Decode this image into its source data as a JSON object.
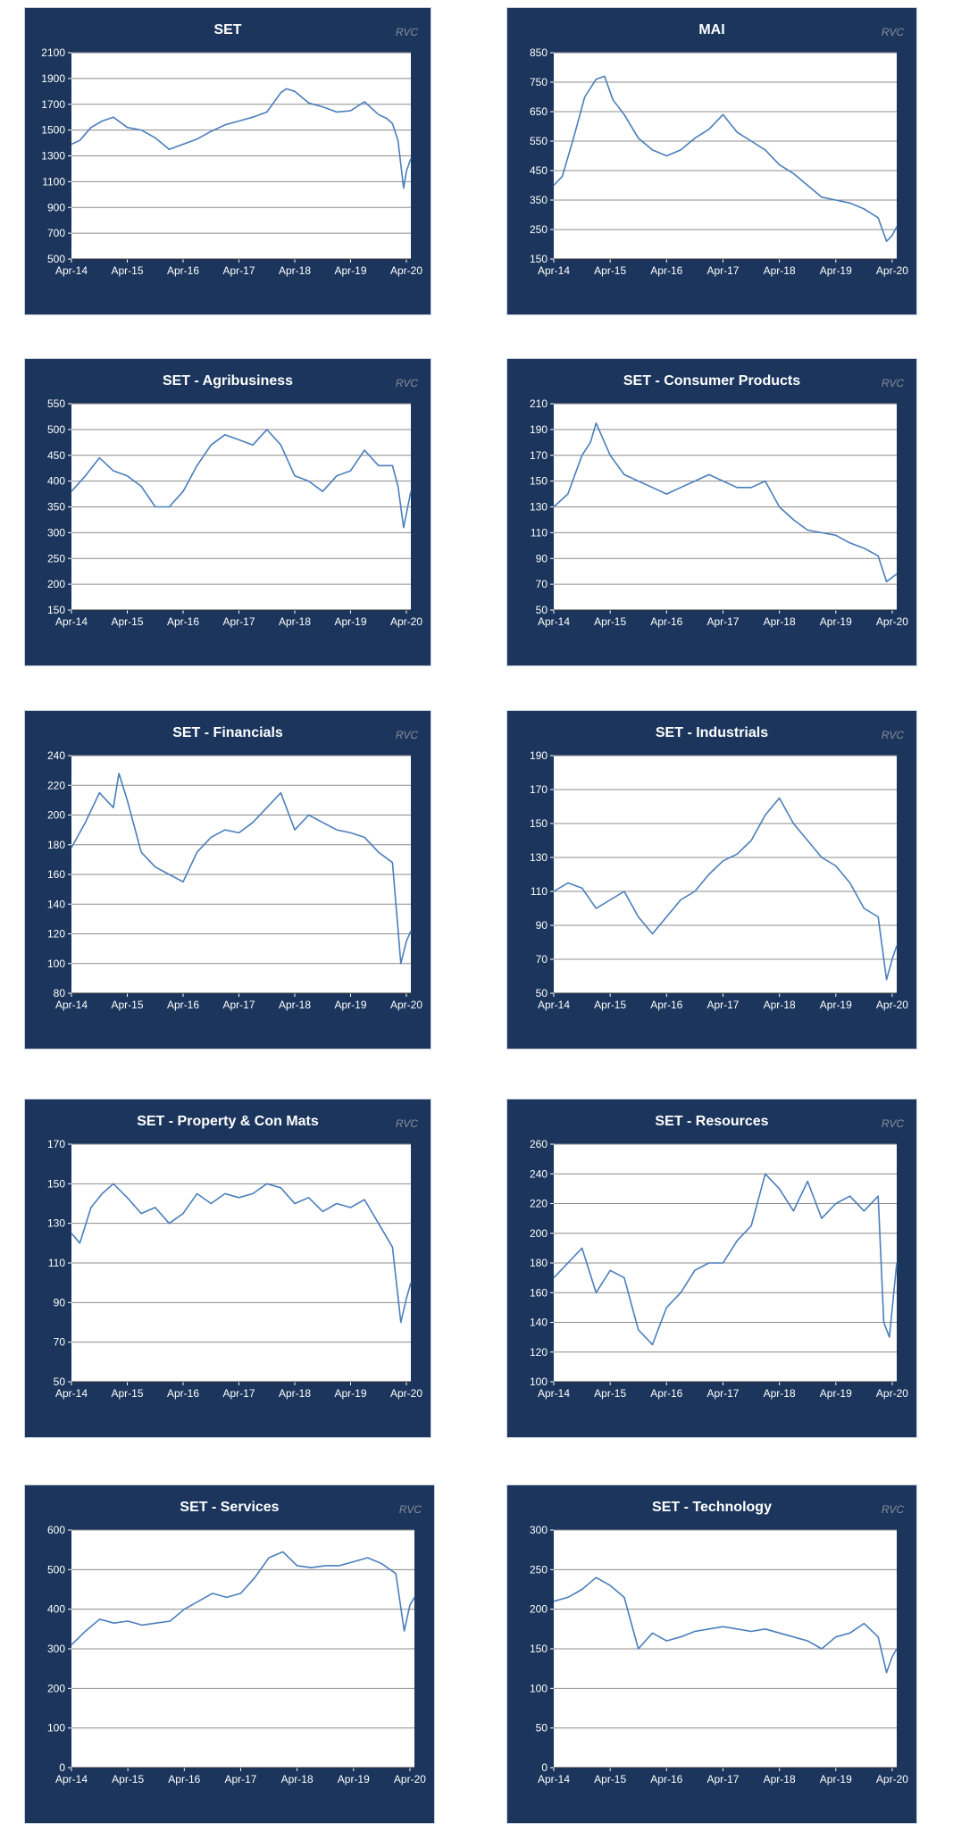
{
  "style": {
    "panel_bg": "#1b355c",
    "plot_bg": "#ffffff",
    "grid": "#8c8c8c",
    "line": "#4a7ebb",
    "tick_text": "#ffffff"
  },
  "chart_data": [
    {
      "type": "line",
      "title": "SET",
      "watermark": "RVC",
      "ylim": [
        500,
        2100
      ],
      "yticks": [
        500,
        700,
        900,
        1100,
        1300,
        1500,
        1700,
        1900,
        2100
      ],
      "xticks": [
        "Apr-14",
        "Apr-15",
        "Apr-16",
        "Apr-17",
        "Apr-18",
        "Apr-19",
        "Apr-20"
      ],
      "xlim": [
        2014.25,
        2020.33
      ],
      "series": [
        {
          "x": [
            2014.25,
            2014.4,
            2014.6,
            2014.8,
            2015.0,
            2015.25,
            2015.5,
            2015.75,
            2016.0,
            2016.25,
            2016.5,
            2016.75,
            2017.0,
            2017.25,
            2017.5,
            2017.75,
            2018.0,
            2018.1,
            2018.25,
            2018.5,
            2018.75,
            2019.0,
            2019.25,
            2019.5,
            2019.75,
            2019.9,
            2020.0,
            2020.1,
            2020.2,
            2020.25,
            2020.33
          ],
          "y": [
            1390,
            1420,
            1520,
            1570,
            1600,
            1520,
            1500,
            1440,
            1350,
            1390,
            1430,
            1490,
            1540,
            1570,
            1600,
            1640,
            1790,
            1820,
            1800,
            1710,
            1680,
            1640,
            1650,
            1720,
            1620,
            1590,
            1550,
            1420,
            1050,
            1180,
            1280
          ]
        }
      ]
    },
    {
      "type": "line",
      "title": "MAI",
      "watermark": "RVC",
      "ylim": [
        150,
        850
      ],
      "yticks": [
        150,
        250,
        350,
        450,
        550,
        650,
        750,
        850
      ],
      "xticks": [
        "Apr-14",
        "Apr-15",
        "Apr-16",
        "Apr-17",
        "Apr-18",
        "Apr-19",
        "Apr-20"
      ],
      "xlim": [
        2014.25,
        2020.33
      ],
      "series": [
        {
          "x": [
            2014.25,
            2014.4,
            2014.6,
            2014.8,
            2015.0,
            2015.15,
            2015.3,
            2015.5,
            2015.75,
            2016.0,
            2016.25,
            2016.5,
            2016.75,
            2017.0,
            2017.25,
            2017.5,
            2017.75,
            2018.0,
            2018.25,
            2018.5,
            2018.75,
            2019.0,
            2019.25,
            2019.5,
            2019.75,
            2020.0,
            2020.15,
            2020.25,
            2020.33
          ],
          "y": [
            400,
            430,
            560,
            700,
            760,
            770,
            690,
            640,
            560,
            520,
            500,
            520,
            560,
            590,
            640,
            580,
            550,
            520,
            470,
            440,
            400,
            360,
            350,
            340,
            320,
            290,
            210,
            230,
            260
          ]
        }
      ]
    },
    {
      "type": "line",
      "title": "SET - Agribusiness",
      "watermark": "RVC",
      "ylim": [
        150,
        550
      ],
      "yticks": [
        150,
        200,
        250,
        300,
        350,
        400,
        450,
        500,
        550
      ],
      "xticks": [
        "Apr-14",
        "Apr-15",
        "Apr-16",
        "Apr-17",
        "Apr-18",
        "Apr-19",
        "Apr-20"
      ],
      "xlim": [
        2014.25,
        2020.33
      ],
      "series": [
        {
          "x": [
            2014.25,
            2014.5,
            2014.75,
            2015.0,
            2015.25,
            2015.5,
            2015.75,
            2016.0,
            2016.25,
            2016.5,
            2016.75,
            2017.0,
            2017.25,
            2017.5,
            2017.75,
            2018.0,
            2018.25,
            2018.5,
            2018.75,
            2019.0,
            2019.25,
            2019.5,
            2019.75,
            2020.0,
            2020.1,
            2020.2,
            2020.33
          ],
          "y": [
            380,
            410,
            445,
            420,
            410,
            390,
            350,
            350,
            380,
            430,
            470,
            490,
            480,
            470,
            500,
            470,
            410,
            400,
            380,
            410,
            420,
            460,
            430,
            430,
            390,
            310,
            380
          ]
        }
      ]
    },
    {
      "type": "line",
      "title": "SET - Consumer Products",
      "watermark": "RVC",
      "ylim": [
        50,
        210
      ],
      "yticks": [
        50,
        70,
        90,
        110,
        130,
        150,
        170,
        190,
        210
      ],
      "xticks": [
        "Apr-14",
        "Apr-15",
        "Apr-16",
        "Apr-17",
        "Apr-18",
        "Apr-19",
        "Apr-20"
      ],
      "xlim": [
        2014.25,
        2020.33
      ],
      "series": [
        {
          "x": [
            2014.25,
            2014.5,
            2014.75,
            2014.9,
            2015.0,
            2015.25,
            2015.5,
            2015.75,
            2016.0,
            2016.25,
            2016.5,
            2016.75,
            2017.0,
            2017.25,
            2017.5,
            2017.75,
            2018.0,
            2018.25,
            2018.5,
            2018.75,
            2019.0,
            2019.25,
            2019.5,
            2019.75,
            2020.0,
            2020.15,
            2020.33
          ],
          "y": [
            130,
            140,
            170,
            180,
            195,
            170,
            155,
            150,
            145,
            140,
            145,
            150,
            155,
            150,
            145,
            145,
            150,
            130,
            120,
            112,
            110,
            108,
            102,
            98,
            92,
            72,
            78
          ]
        }
      ]
    },
    {
      "type": "line",
      "title": "SET - Financials",
      "watermark": "RVC",
      "ylim": [
        80,
        240
      ],
      "yticks": [
        80,
        100,
        120,
        140,
        160,
        180,
        200,
        220,
        240
      ],
      "xticks": [
        "Apr-14",
        "Apr-15",
        "Apr-16",
        "Apr-17",
        "Apr-18",
        "Apr-19",
        "Apr-20"
      ],
      "xlim": [
        2014.25,
        2020.33
      ],
      "series": [
        {
          "x": [
            2014.25,
            2014.5,
            2014.75,
            2015.0,
            2015.1,
            2015.25,
            2015.5,
            2015.75,
            2016.0,
            2016.25,
            2016.5,
            2016.75,
            2017.0,
            2017.25,
            2017.5,
            2017.75,
            2018.0,
            2018.25,
            2018.5,
            2018.75,
            2019.0,
            2019.25,
            2019.5,
            2019.75,
            2020.0,
            2020.15,
            2020.25,
            2020.33
          ],
          "y": [
            178,
            195,
            215,
            205,
            228,
            210,
            175,
            165,
            160,
            155,
            175,
            185,
            190,
            188,
            195,
            205,
            215,
            190,
            200,
            195,
            190,
            188,
            185,
            175,
            168,
            100,
            115,
            122
          ]
        }
      ]
    },
    {
      "type": "line",
      "title": "SET - Industrials",
      "watermark": "RVC",
      "ylim": [
        50,
        190
      ],
      "yticks": [
        50,
        70,
        90,
        110,
        130,
        150,
        170,
        190
      ],
      "xticks": [
        "Apr-14",
        "Apr-15",
        "Apr-16",
        "Apr-17",
        "Apr-18",
        "Apr-19",
        "Apr-20"
      ],
      "xlim": [
        2014.25,
        2020.33
      ],
      "series": [
        {
          "x": [
            2014.25,
            2014.5,
            2014.75,
            2015.0,
            2015.25,
            2015.5,
            2015.75,
            2016.0,
            2016.25,
            2016.5,
            2016.75,
            2017.0,
            2017.25,
            2017.5,
            2017.75,
            2018.0,
            2018.25,
            2018.5,
            2018.75,
            2019.0,
            2019.25,
            2019.5,
            2019.75,
            2020.0,
            2020.15,
            2020.25,
            2020.33
          ],
          "y": [
            110,
            115,
            112,
            100,
            105,
            110,
            95,
            85,
            95,
            105,
            110,
            120,
            128,
            132,
            140,
            155,
            165,
            150,
            140,
            130,
            125,
            115,
            100,
            95,
            58,
            70,
            78
          ]
        }
      ]
    },
    {
      "type": "line",
      "title": "SET - Property & Con Mats",
      "watermark": "RVC",
      "ylim": [
        50,
        170
      ],
      "yticks": [
        50,
        70,
        90,
        110,
        130,
        150,
        170
      ],
      "xticks": [
        "Apr-14",
        "Apr-15",
        "Apr-16",
        "Apr-17",
        "Apr-18",
        "Apr-19",
        "Apr-20"
      ],
      "xlim": [
        2014.25,
        2020.33
      ],
      "series": [
        {
          "x": [
            2014.25,
            2014.4,
            2014.6,
            2014.8,
            2015.0,
            2015.25,
            2015.5,
            2015.75,
            2016.0,
            2016.25,
            2016.5,
            2016.75,
            2017.0,
            2017.25,
            2017.5,
            2017.75,
            2018.0,
            2018.25,
            2018.5,
            2018.75,
            2019.0,
            2019.25,
            2019.5,
            2019.75,
            2020.0,
            2020.15,
            2020.25,
            2020.33
          ],
          "y": [
            125,
            120,
            138,
            145,
            150,
            143,
            135,
            138,
            130,
            135,
            145,
            140,
            145,
            143,
            145,
            150,
            148,
            140,
            143,
            136,
            140,
            138,
            142,
            130,
            118,
            80,
            92,
            100
          ]
        }
      ]
    },
    {
      "type": "line",
      "title": "SET - Resources",
      "watermark": "RVC",
      "ylim": [
        100,
        260
      ],
      "yticks": [
        100,
        120,
        140,
        160,
        180,
        200,
        220,
        240,
        260
      ],
      "xticks": [
        "Apr-14",
        "Apr-15",
        "Apr-16",
        "Apr-17",
        "Apr-18",
        "Apr-19",
        "Apr-20"
      ],
      "xlim": [
        2014.25,
        2020.33
      ],
      "series": [
        {
          "x": [
            2014.25,
            2014.5,
            2014.75,
            2015.0,
            2015.25,
            2015.5,
            2015.75,
            2016.0,
            2016.25,
            2016.5,
            2016.75,
            2017.0,
            2017.25,
            2017.5,
            2017.75,
            2018.0,
            2018.25,
            2018.5,
            2018.75,
            2019.0,
            2019.25,
            2019.5,
            2019.75,
            2020.0,
            2020.1,
            2020.2,
            2020.33
          ],
          "y": [
            170,
            180,
            190,
            160,
            175,
            170,
            135,
            125,
            150,
            160,
            175,
            180,
            180,
            195,
            205,
            240,
            230,
            215,
            235,
            210,
            220,
            225,
            215,
            225,
            140,
            130,
            180
          ]
        }
      ]
    },
    {
      "type": "line",
      "title": "SET - Services",
      "watermark": "RVC",
      "ylim": [
        0,
        600
      ],
      "yticks": [
        0,
        100,
        200,
        300,
        400,
        500,
        600
      ],
      "xticks": [
        "Apr-14",
        "Apr-15",
        "Apr-16",
        "Apr-17",
        "Apr-18",
        "Apr-19",
        "Apr-20"
      ],
      "xlim": [
        2014.25,
        2020.33
      ],
      "series": [
        {
          "x": [
            2014.25,
            2014.5,
            2014.75,
            2015.0,
            2015.25,
            2015.5,
            2015.75,
            2016.0,
            2016.25,
            2016.5,
            2016.75,
            2017.0,
            2017.25,
            2017.5,
            2017.75,
            2018.0,
            2018.25,
            2018.5,
            2018.75,
            2019.0,
            2019.25,
            2019.5,
            2019.75,
            2020.0,
            2020.15,
            2020.25,
            2020.33
          ],
          "y": [
            310,
            345,
            375,
            365,
            370,
            360,
            365,
            370,
            400,
            420,
            440,
            430,
            440,
            480,
            530,
            545,
            510,
            505,
            510,
            510,
            520,
            530,
            515,
            490,
            345,
            410,
            430
          ]
        }
      ]
    },
    {
      "type": "line",
      "title": "SET - Technology",
      "watermark": "RVC",
      "ylim": [
        0,
        300
      ],
      "yticks": [
        0,
        50,
        100,
        150,
        200,
        250,
        300
      ],
      "xticks": [
        "Apr-14",
        "Apr-15",
        "Apr-16",
        "Apr-17",
        "Apr-18",
        "Apr-19",
        "Apr-20"
      ],
      "xlim": [
        2014.25,
        2020.33
      ],
      "series": [
        {
          "x": [
            2014.25,
            2014.5,
            2014.75,
            2015.0,
            2015.25,
            2015.5,
            2015.75,
            2016.0,
            2016.25,
            2016.5,
            2016.75,
            2017.0,
            2017.25,
            2017.5,
            2017.75,
            2018.0,
            2018.25,
            2018.5,
            2018.75,
            2019.0,
            2019.25,
            2019.5,
            2019.75,
            2020.0,
            2020.15,
            2020.25,
            2020.33
          ],
          "y": [
            210,
            215,
            225,
            240,
            230,
            215,
            150,
            170,
            160,
            165,
            172,
            175,
            178,
            175,
            172,
            175,
            170,
            165,
            160,
            150,
            165,
            170,
            182,
            165,
            120,
            140,
            150
          ]
        }
      ]
    }
  ]
}
